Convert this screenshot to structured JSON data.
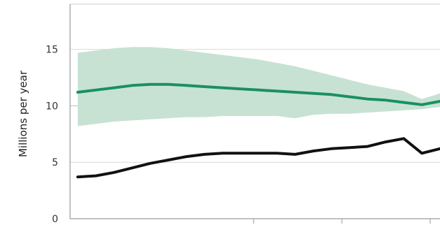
{
  "chart_data": {
    "type": "line",
    "ylabel": "Millions per year",
    "ylim": [
      0,
      19
    ],
    "yticks": [
      0,
      5,
      10,
      15
    ],
    "xlim": [
      0,
      20
    ],
    "grid": "horizontal",
    "x": [
      0,
      1,
      2,
      3,
      4,
      5,
      6,
      7,
      8,
      9,
      10,
      11,
      12,
      13,
      14,
      15,
      16,
      17,
      18,
      19,
      20
    ],
    "series": [
      {
        "role": "central-estimate",
        "color": "#1a9060",
        "values": [
          11.2,
          11.4,
          11.6,
          11.8,
          11.9,
          11.9,
          11.8,
          11.7,
          11.6,
          11.5,
          11.4,
          11.3,
          11.2,
          11.1,
          11.0,
          10.8,
          10.6,
          10.5,
          10.3,
          10.1,
          10.4
        ]
      },
      {
        "role": "observed",
        "color": "#111111",
        "values": [
          3.7,
          3.8,
          4.1,
          4.5,
          4.9,
          5.2,
          5.5,
          5.7,
          5.8,
          5.8,
          5.8,
          5.8,
          5.7,
          6.0,
          6.2,
          6.3,
          6.4,
          6.8,
          7.1,
          5.8,
          6.2
        ]
      }
    ],
    "band": {
      "role": "uncertainty-range",
      "color": "#c7e2d3",
      "upper": [
        14.7,
        14.9,
        15.1,
        15.2,
        15.2,
        15.1,
        14.9,
        14.7,
        14.5,
        14.3,
        14.1,
        13.8,
        13.5,
        13.1,
        12.7,
        12.3,
        11.9,
        11.6,
        11.3,
        10.6,
        11.1
      ],
      "lower": [
        8.2,
        8.4,
        8.6,
        8.7,
        8.8,
        8.9,
        9.0,
        9.0,
        9.1,
        9.1,
        9.1,
        9.1,
        8.9,
        9.2,
        9.3,
        9.3,
        9.4,
        9.5,
        9.6,
        9.7,
        9.9
      ]
    }
  }
}
